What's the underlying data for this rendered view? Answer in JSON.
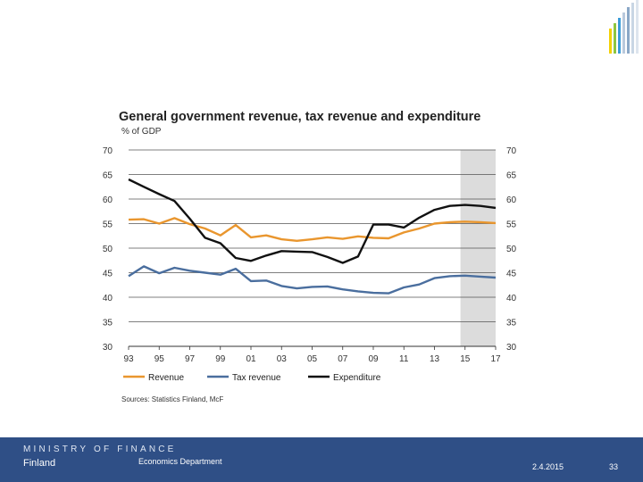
{
  "colors": {
    "revenue": "#e9962e",
    "tax_revenue": "#4a6e9e",
    "expenditure": "#111111",
    "forecast_band": "#dcdcdc",
    "footer": "#2f4f86"
  },
  "chart_data": {
    "type": "line",
    "title": "General government revenue, tax revenue and expenditure",
    "ylabel": "% of GDP",
    "ylim": [
      30,
      70
    ],
    "yticks": [
      70,
      65,
      60,
      55,
      50,
      45,
      40,
      35,
      30
    ],
    "xlim": [
      1993,
      2017
    ],
    "xtick_labels": [
      "93",
      "95",
      "97",
      "99",
      "01",
      "03",
      "05",
      "07",
      "09",
      "11",
      "13",
      "15",
      "17"
    ],
    "forecast_start": 2014.7,
    "x": [
      1993,
      1994,
      1995,
      1996,
      1997,
      1998,
      1999,
      2000,
      2001,
      2002,
      2003,
      2004,
      2005,
      2006,
      2007,
      2008,
      2009,
      2010,
      2011,
      2012,
      2013,
      2014,
      2015,
      2016,
      2017
    ],
    "series": [
      {
        "name": "Revenue",
        "values": [
          55.8,
          55.9,
          55.0,
          56.1,
          54.9,
          54.0,
          52.6,
          54.7,
          52.2,
          52.6,
          51.8,
          51.5,
          51.8,
          52.2,
          51.9,
          52.4,
          52.1,
          52.0,
          53.2,
          54.0,
          55.0,
          55.3,
          55.4,
          55.3,
          55.1
        ]
      },
      {
        "name": "Tax revenue",
        "values": [
          44.3,
          46.3,
          44.9,
          46.0,
          45.4,
          45.0,
          44.6,
          45.8,
          43.3,
          43.4,
          42.3,
          41.8,
          42.1,
          42.2,
          41.6,
          41.2,
          40.9,
          40.8,
          42.0,
          42.6,
          43.9,
          44.3,
          44.4,
          44.2,
          44.0
        ]
      },
      {
        "name": "Expenditure",
        "values": [
          64.0,
          62.5,
          61.0,
          59.6,
          56.0,
          52.1,
          51.0,
          48.0,
          47.4,
          48.5,
          49.4,
          49.3,
          49.2,
          48.2,
          47.0,
          48.3,
          54.8,
          54.8,
          54.2,
          56.2,
          57.8,
          58.6,
          58.8,
          58.6,
          58.2
        ]
      }
    ],
    "source": "Sources: Statistics Finland, McF"
  },
  "footer": {
    "ministry": "MINISTRY OF FINANCE",
    "country": "Finland",
    "department": "Economics Department",
    "date": "2.4.2015",
    "page_number": "33"
  }
}
